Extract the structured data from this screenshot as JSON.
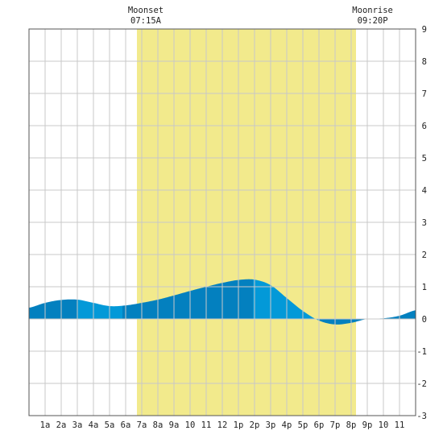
{
  "chart_data": {
    "type": "area",
    "title": "",
    "xlabel": "",
    "ylabel": "",
    "xlim": [
      0,
      24
    ],
    "ylim": [
      -3,
      9
    ],
    "y_ticks": [
      9,
      8,
      7,
      6,
      5,
      4,
      3,
      2,
      1,
      0,
      -1,
      -2,
      -3
    ],
    "x_tick_labels": [
      "1a",
      "2a",
      "3a",
      "4a",
      "5a",
      "6a",
      "7a",
      "8a",
      "9a",
      "10",
      "11",
      "12",
      "1p",
      "2p",
      "3p",
      "4p",
      "5p",
      "6p",
      "7p",
      "8p",
      "9p",
      "10",
      "11"
    ],
    "grid": true,
    "daylight": {
      "start": 6.7,
      "end": 20.3,
      "color": "#f2ea8c"
    },
    "annotations": [
      {
        "name": "moonset",
        "label": "Moonset",
        "time": "07:15A",
        "x": 7.25
      },
      {
        "name": "moonrise",
        "label": "Moonrise",
        "time": "09:20P",
        "x": 21.33
      }
    ],
    "colors": {
      "area_dark": "#0380bf",
      "area_light": "#0399d8",
      "grid": "#c8c8c8",
      "axis": "#555555"
    },
    "band_boundaries": [
      0,
      3,
      5.8,
      13.9,
      18,
      24
    ],
    "series": [
      {
        "x": [
          0,
          1,
          2,
          3,
          4,
          5,
          6,
          7,
          8,
          9,
          10,
          11,
          12,
          13,
          14,
          15,
          16,
          17,
          18,
          19,
          20,
          21,
          22,
          23,
          24
        ],
        "y": [
          0.35,
          0.5,
          0.59,
          0.6,
          0.5,
          0.4,
          0.42,
          0.5,
          0.6,
          0.73,
          0.87,
          1.0,
          1.12,
          1.21,
          1.22,
          1.05,
          0.65,
          0.25,
          -0.05,
          -0.17,
          -0.12,
          0.0,
          0.02,
          0.1,
          0.27
        ]
      }
    ]
  }
}
